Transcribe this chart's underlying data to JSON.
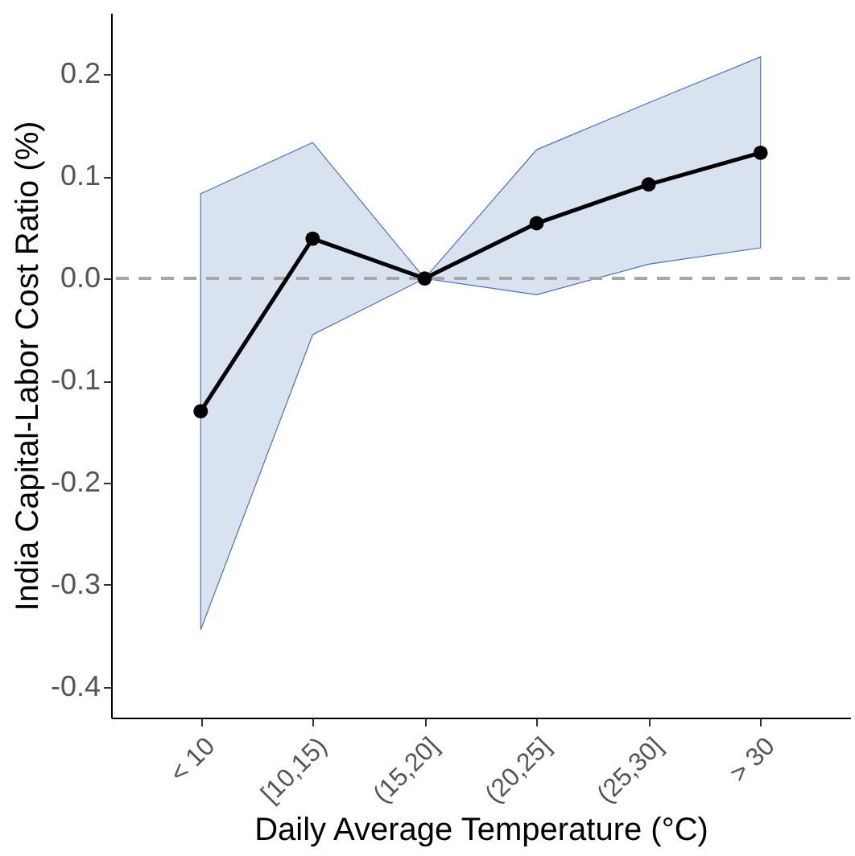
{
  "chart_data": {
    "type": "line",
    "xlabel": "Daily Average Temperature (°C)",
    "ylabel": "India Capital-Labor Cost Ratio (%)",
    "categories": [
      "< 10",
      "[10,15)",
      "(15,20]",
      "(20,25]",
      "(25,30]",
      "> 30"
    ],
    "series": [
      {
        "color": "#000000",
        "values": [
          -0.13,
          0.039,
          0,
          0.054,
          0.092,
          0.123
        ],
        "lower": [
          -0.344,
          -0.055,
          0,
          -0.016,
          0.014,
          0.03
        ],
        "upper": [
          0.083,
          0.133,
          0,
          0.126,
          0.172,
          0.217
        ]
      }
    ],
    "ylim": [
      -0.43,
      0.26
    ],
    "yticks": [
      {
        "value": -0.4,
        "label": "-0.4"
      },
      {
        "value": -0.3,
        "label": "-0.3"
      },
      {
        "value": -0.2,
        "label": "-0.2"
      },
      {
        "value": -0.1,
        "label": "-0.1"
      },
      {
        "value": 0,
        "label": "0.0"
      },
      {
        "value": 0.1,
        "label": "0.1"
      },
      {
        "value": 0.2,
        "label": "0.2"
      }
    ],
    "ref_lines": [
      {
        "axis": "y",
        "value": 0,
        "color": "#a6a6a6",
        "line_style": "dashed"
      }
    ],
    "grid": false,
    "marker": "circle",
    "line_style": "solid"
  }
}
